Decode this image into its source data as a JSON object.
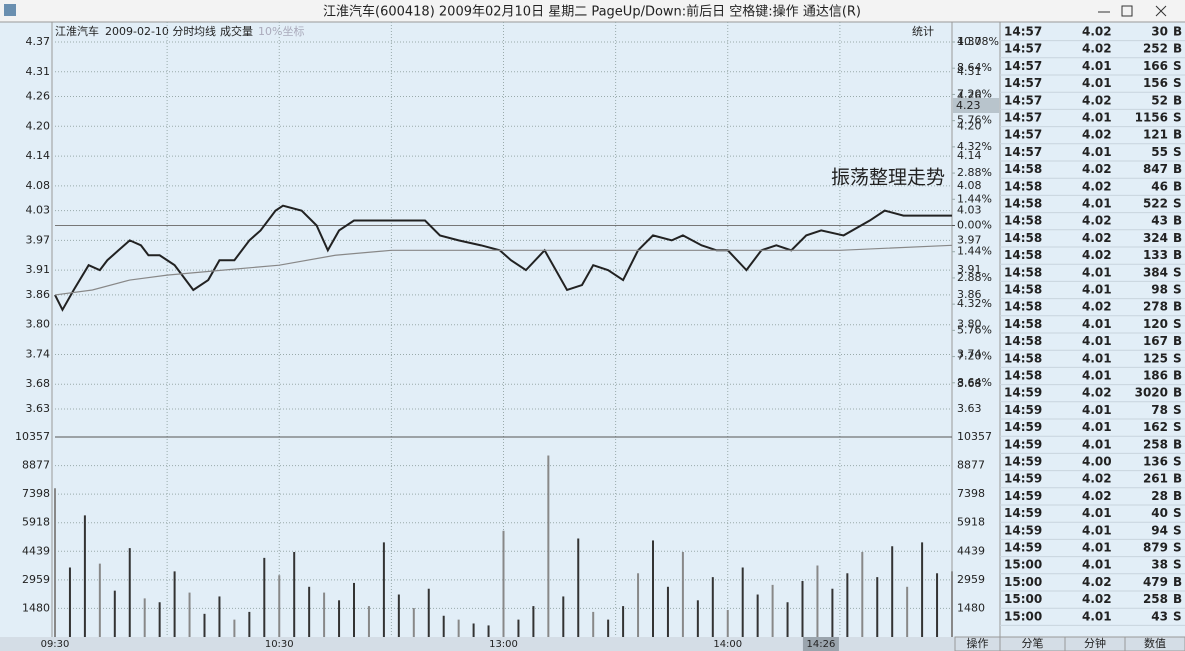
{
  "window": {
    "title": "江淮汽车(600418) 2009年02月10日 星期二 PageUp/Down:前后日 空格键:操作 通达信(R)"
  },
  "chart_header": [
    "江淮汽车",
    "2009-02-10 分时",
    "均线",
    "成交量",
    "10%坐标",
    "统计"
  ],
  "chart_data": [
    {
      "type": "line",
      "annotations": [
        "振荡整理走势"
      ],
      "price_box": "4.23",
      "ylim": [
        3.63,
        4.37
      ],
      "yticks": [
        4.37,
        4.31,
        4.26,
        {
          "value": 4.2,
          "label": "4.20"
        },
        4.14,
        4.08,
        4.03,
        3.97,
        3.91,
        3.86,
        {
          "value": 3.8,
          "label": "3.80"
        },
        3.74,
        3.68,
        3.63
      ],
      "y2lim": [
        -10.08,
        10.08
      ],
      "y2ticks": [
        {
          "value": 10.08,
          "label": "10.08%"
        },
        {
          "value": 8.64,
          "label": "8.64%"
        },
        {
          "value": 7.2,
          "label": "7.20%"
        },
        {
          "value": 5.76,
          "label": "5.76%"
        },
        {
          "value": 4.32,
          "label": "4.32%"
        },
        {
          "value": 2.88,
          "label": "2.88%"
        },
        {
          "value": 1.44,
          "label": "1.44%"
        },
        {
          "value": 0,
          "label": "0.00%"
        },
        {
          "value": -1.44,
          "label": "1.44%"
        },
        {
          "value": -2.88,
          "label": "2.88%"
        },
        {
          "value": -4.32,
          "label": "4.32%"
        },
        {
          "value": -5.76,
          "label": "5.76%"
        },
        {
          "value": -7.2,
          "label": "7.20%"
        },
        {
          "value": -8.64,
          "label": "8.64%"
        }
      ],
      "xlim": [
        0,
        240
      ],
      "xticks": [
        {
          "value": 0,
          "label": "09:30"
        },
        {
          "value": 60,
          "label": "10:30"
        },
        {
          "value": 120,
          "label": "13:00"
        },
        {
          "value": 180,
          "label": "14:00"
        }
      ],
      "xgrid": [
        30,
        90,
        150,
        210
      ],
      "series": [
        {
          "color": "#222222",
          "x": [
            0,
            2,
            5,
            9,
            12,
            14,
            17,
            20,
            23,
            25,
            28,
            32,
            37,
            41,
            44,
            48,
            52,
            55,
            59,
            61,
            66,
            70,
            73,
            76,
            80,
            84,
            91,
            99,
            103,
            108,
            114,
            119,
            122,
            126,
            131,
            134,
            137,
            141,
            144,
            148,
            152,
            156,
            160,
            165,
            168,
            173,
            177,
            180,
            185,
            189,
            193,
            197,
            201,
            205,
            211,
            218,
            222,
            227,
            231,
            237,
            240
          ],
          "values": [
            3.86,
            3.83,
            3.87,
            3.92,
            3.91,
            3.93,
            3.95,
            3.97,
            3.96,
            3.94,
            3.94,
            3.92,
            3.87,
            3.89,
            3.93,
            3.93,
            3.97,
            3.99,
            4.03,
            4.04,
            4.03,
            4.0,
            3.95,
            3.99,
            4.01,
            4.01,
            4.01,
            4.01,
            3.98,
            3.97,
            3.96,
            3.95,
            3.93,
            3.91,
            3.95,
            3.91,
            3.87,
            3.88,
            3.92,
            3.91,
            3.89,
            3.95,
            3.98,
            3.97,
            3.98,
            3.96,
            3.95,
            3.95,
            3.91,
            3.95,
            3.96,
            3.95,
            3.98,
            3.99,
            3.98,
            4.01,
            4.03,
            4.02,
            4.02,
            4.02,
            4.02
          ]
        },
        {
          "color": "#888888",
          "x": [
            0,
            10,
            20,
            30,
            45,
            60,
            75,
            90,
            120,
            150,
            180,
            210,
            240
          ],
          "values": [
            3.86,
            3.87,
            3.89,
            3.9,
            3.91,
            3.92,
            3.94,
            3.95,
            3.95,
            3.95,
            3.95,
            3.95,
            3.96
          ]
        }
      ]
    },
    {
      "type": "bar",
      "color": "#333333",
      "ylim": [
        0,
        10357
      ],
      "yticks": [
        10357,
        8877,
        7398,
        5918,
        4439,
        2959,
        1480
      ],
      "xlim": [
        0,
        240
      ],
      "cursor": {
        "value": 206,
        "label": "14:26"
      },
      "x": [
        0,
        4,
        8,
        12,
        16,
        20,
        24,
        28,
        32,
        36,
        40,
        44,
        48,
        52,
        56,
        60,
        64,
        68,
        72,
        76,
        80,
        84,
        88,
        92,
        96,
        100,
        104,
        108,
        112,
        116,
        120,
        124,
        128,
        132,
        136,
        140,
        144,
        148,
        152,
        156,
        160,
        164,
        168,
        172,
        176,
        180,
        184,
        188,
        192,
        196,
        200,
        204,
        208,
        212,
        216,
        220,
        224,
        228,
        232,
        236,
        240
      ],
      "values": [
        7700,
        3600,
        6300,
        3800,
        2400,
        4600,
        2000,
        1800,
        3400,
        2300,
        1200,
        2100,
        900,
        1300,
        4100,
        3200,
        4400,
        2600,
        2300,
        1900,
        2800,
        1600,
        4900,
        2200,
        1500,
        2500,
        1100,
        900,
        700,
        600,
        5500,
        900,
        1600,
        9400,
        2100,
        5100,
        1300,
        900,
        1600,
        3300,
        5000,
        2600,
        4400,
        1900,
        3100,
        1400,
        3600,
        2200,
        2700,
        1800,
        2900,
        3700,
        2500,
        3300,
        4400,
        3100,
        4700,
        2600,
        4900,
        3300,
        3400
      ]
    }
  ],
  "trades": {
    "rows": [
      [
        "14:57",
        "4.02",
        "30",
        "B"
      ],
      [
        "14:57",
        "4.02",
        "252",
        "B"
      ],
      [
        "14:57",
        "4.01",
        "166",
        "S"
      ],
      [
        "14:57",
        "4.01",
        "156",
        "S"
      ],
      [
        "14:57",
        "4.02",
        "52",
        "B"
      ],
      [
        "14:57",
        "4.01",
        "1156",
        "S"
      ],
      [
        "14:57",
        "4.02",
        "121",
        "B"
      ],
      [
        "14:57",
        "4.01",
        "55",
        "S"
      ],
      [
        "14:58",
        "4.02",
        "847",
        "B"
      ],
      [
        "14:58",
        "4.02",
        "46",
        "B"
      ],
      [
        "14:58",
        "4.01",
        "522",
        "S"
      ],
      [
        "14:58",
        "4.02",
        "43",
        "B"
      ],
      [
        "14:58",
        "4.02",
        "324",
        "B"
      ],
      [
        "14:58",
        "4.02",
        "133",
        "B"
      ],
      [
        "14:58",
        "4.01",
        "384",
        "S"
      ],
      [
        "14:58",
        "4.01",
        "98",
        "S"
      ],
      [
        "14:58",
        "4.02",
        "278",
        "B"
      ],
      [
        "14:58",
        "4.01",
        "120",
        "S"
      ],
      [
        "14:58",
        "4.01",
        "167",
        "B"
      ],
      [
        "14:58",
        "4.01",
        "125",
        "S"
      ],
      [
        "14:58",
        "4.01",
        "186",
        "B"
      ],
      [
        "14:59",
        "4.02",
        "3020",
        "B"
      ],
      [
        "14:59",
        "4.01",
        "78",
        "S"
      ],
      [
        "14:59",
        "4.01",
        "162",
        "S"
      ],
      [
        "14:59",
        "4.01",
        "258",
        "B"
      ],
      [
        "14:59",
        "4.00",
        "136",
        "S"
      ],
      [
        "14:59",
        "4.02",
        "261",
        "B"
      ],
      [
        "14:59",
        "4.02",
        "28",
        "B"
      ],
      [
        "14:59",
        "4.01",
        "40",
        "S"
      ],
      [
        "14:59",
        "4.01",
        "94",
        "S"
      ],
      [
        "14:59",
        "4.01",
        "879",
        "S"
      ],
      [
        "15:00",
        "4.01",
        "38",
        "S"
      ],
      [
        "15:00",
        "4.02",
        "479",
        "B"
      ],
      [
        "15:00",
        "4.02",
        "258",
        "B"
      ],
      [
        "15:00",
        "4.01",
        "43",
        "S"
      ]
    ]
  },
  "tabs": [
    "操作",
    "分笔",
    "分钟",
    "数值"
  ]
}
